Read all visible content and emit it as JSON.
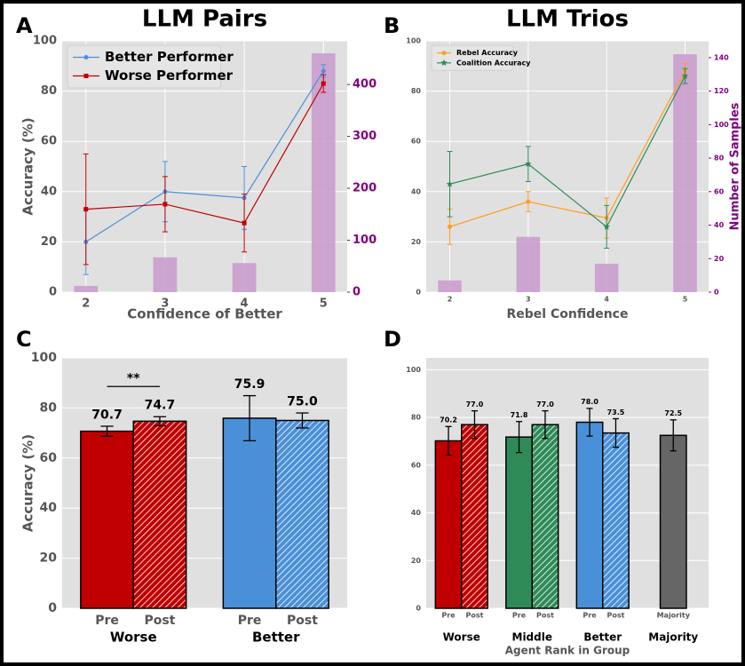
{
  "chart_data": [
    {
      "type": "line",
      "panel": "A",
      "title": "LLM Pairs",
      "xlabel": "Confidence of Better",
      "ylabel": "Accuracy (%)",
      "x": [
        2,
        3,
        4,
        5
      ],
      "xlim": [
        1.7,
        5.3
      ],
      "xticks": [
        2,
        3,
        4,
        5
      ],
      "ylim": [
        0,
        100
      ],
      "yticks": [
        0,
        20,
        40,
        60,
        80,
        100
      ],
      "y2lim": [
        0,
        484
      ],
      "y2ticks": [
        0,
        100,
        200,
        300,
        400
      ],
      "grid": true,
      "legend": "upper-left",
      "series": [
        {
          "name": "Better Performer",
          "color": "#4a90d9",
          "marker": "circle",
          "values": [
            20,
            40,
            37.5,
            88
          ],
          "errors": [
            13,
            12,
            12.5,
            2.5
          ]
        },
        {
          "name": "Worse Performer",
          "color": "#c00000",
          "marker": "square",
          "values": [
            33,
            35,
            27.5,
            83
          ],
          "errors": [
            22,
            11,
            11.5,
            3.5
          ]
        }
      ],
      "bars": {
        "axis": "y2",
        "color": "#c899cc",
        "values": [
          12,
          67,
          56,
          460
        ]
      }
    },
    {
      "type": "line",
      "panel": "B",
      "title": "LLM Trios",
      "xlabel": "Rebel Confidence",
      "y2label": "Number of Samples",
      "x": [
        2,
        3,
        4,
        5
      ],
      "xlim": [
        1.7,
        5.3
      ],
      "xticks": [
        2,
        3,
        4,
        5
      ],
      "ylim": [
        0,
        100
      ],
      "yticks": [
        0,
        20,
        40,
        60,
        80,
        100
      ],
      "y2lim": [
        0,
        150
      ],
      "y2ticks": [
        0,
        20,
        40,
        60,
        80,
        100,
        120,
        140
      ],
      "grid": true,
      "legend": "upper-left",
      "series": [
        {
          "name": "Rebel Accuracy",
          "color": "#ff9f1c",
          "marker": "circle",
          "values": [
            26,
            36,
            29.5,
            88
          ],
          "errors": [
            7,
            4,
            8,
            3
          ]
        },
        {
          "name": "Coalition Accuracy",
          "color": "#2e8b57",
          "marker": "star",
          "values": [
            43,
            51,
            26,
            86
          ],
          "errors": [
            13,
            7,
            8.5,
            3
          ]
        }
      ],
      "bars": {
        "axis": "y2",
        "color": "#c899cc",
        "values": [
          7,
          33,
          17,
          142
        ]
      }
    },
    {
      "type": "bar",
      "panel": "C",
      "ylabel": "Accuracy (%)",
      "ylim": [
        0,
        100
      ],
      "yticks": [
        0,
        20,
        40,
        60,
        80,
        100
      ],
      "grid": true,
      "groups": [
        {
          "name": "Worse",
          "color": "#c00000",
          "categories": [
            "Pre",
            "Post"
          ],
          "hatch": [
            false,
            true
          ],
          "values": [
            70.7,
            74.7
          ],
          "errors": [
            2,
            1.8
          ],
          "value_labels": [
            "70.7",
            "74.7"
          ],
          "annotation": "**"
        },
        {
          "name": "Better",
          "color": "#4a90d9",
          "categories": [
            "Pre",
            "Post"
          ],
          "hatch": [
            false,
            true
          ],
          "values": [
            75.9,
            75.0
          ],
          "errors": [
            9,
            3
          ],
          "value_labels": [
            "75.9",
            "75.0"
          ]
        }
      ]
    },
    {
      "type": "bar",
      "panel": "D",
      "xlabel": "Agent Rank in Group",
      "ylim": [
        0,
        105
      ],
      "yticks": [
        0,
        20,
        40,
        60,
        80,
        100
      ],
      "grid": true,
      "groups": [
        {
          "name": "Worse",
          "color": "#c00000",
          "categories": [
            "Pre",
            "Post"
          ],
          "hatch": [
            false,
            true
          ],
          "values": [
            70.2,
            77.0
          ],
          "errors": [
            6,
            5.8
          ],
          "value_labels": [
            "70.2",
            "77.0"
          ]
        },
        {
          "name": "Middle",
          "color": "#2e8b57",
          "categories": [
            "Pre",
            "Post"
          ],
          "hatch": [
            false,
            true
          ],
          "values": [
            71.8,
            77.0
          ],
          "errors": [
            6.5,
            5.8
          ],
          "value_labels": [
            "71.8",
            "77.0"
          ]
        },
        {
          "name": "Better",
          "color": "#4a90d9",
          "categories": [
            "Pre",
            "Post"
          ],
          "hatch": [
            false,
            true
          ],
          "values": [
            78.0,
            73.5
          ],
          "errors": [
            5.8,
            6
          ],
          "value_labels": [
            "78.0",
            "73.5"
          ]
        },
        {
          "name": "Majority",
          "color": "#666666",
          "categories": [
            "Majority"
          ],
          "hatch": [
            false
          ],
          "values": [
            72.5
          ],
          "errors": [
            6.5
          ],
          "value_labels": [
            "72.5"
          ]
        }
      ]
    }
  ]
}
